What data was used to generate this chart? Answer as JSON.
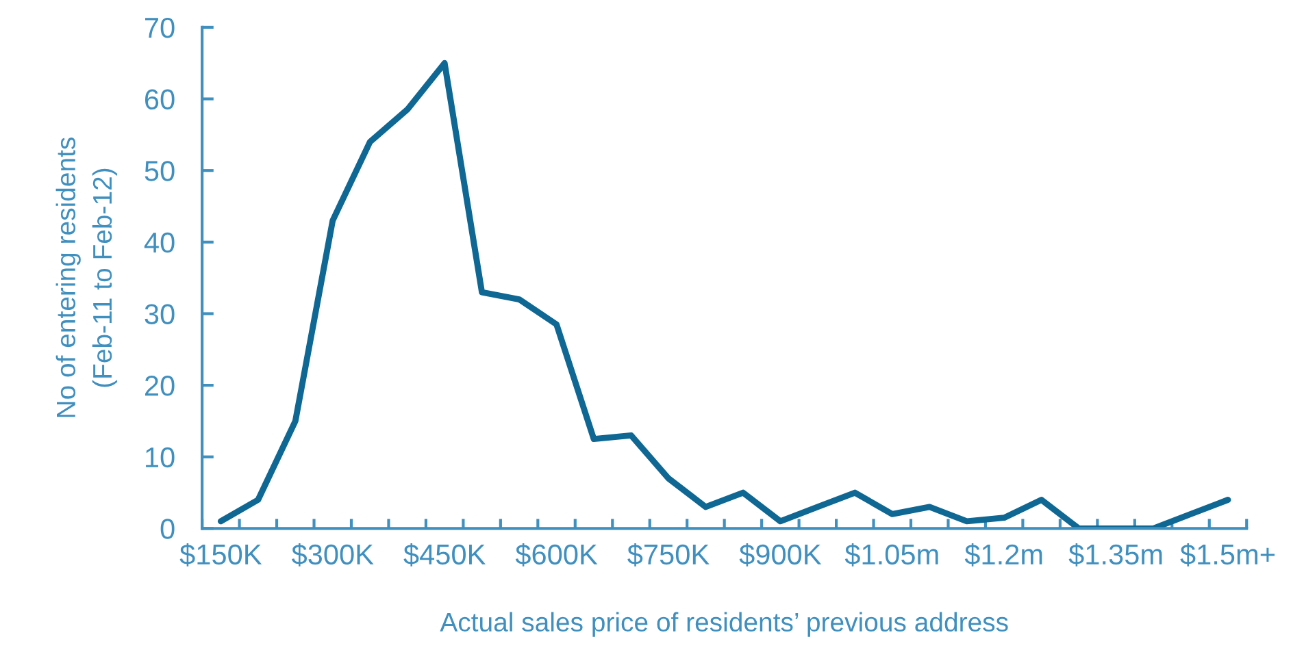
{
  "chart_data": {
    "type": "line",
    "xlabel": "Actual sales price of residents’ previous address",
    "ylabel": "No of entering residents\n(Feb-11 to Feb-12)",
    "categories": [
      "$150K",
      null,
      null,
      "$300K",
      null,
      null,
      "$450K",
      null,
      null,
      "$600K",
      null,
      null,
      "$750K",
      null,
      null,
      "$900K",
      null,
      null,
      "$1.05m",
      null,
      null,
      "$1.2m",
      null,
      null,
      "$1.35m",
      null,
      null,
      "$1.5m+"
    ],
    "series": [
      {
        "color": "#0f6793",
        "values": [
          1,
          4,
          15,
          43,
          54,
          58.5,
          65,
          33,
          32,
          28.5,
          12.5,
          13,
          7,
          3,
          5,
          1,
          3,
          5,
          2,
          3,
          1,
          1.5,
          4,
          0,
          0,
          0,
          2,
          4
        ]
      }
    ],
    "ylim": [
      0,
      70
    ],
    "yticks": [
      0,
      10,
      20,
      30,
      40,
      50,
      60,
      70
    ],
    "grid": false,
    "marker": "none",
    "line_style": "solid"
  }
}
